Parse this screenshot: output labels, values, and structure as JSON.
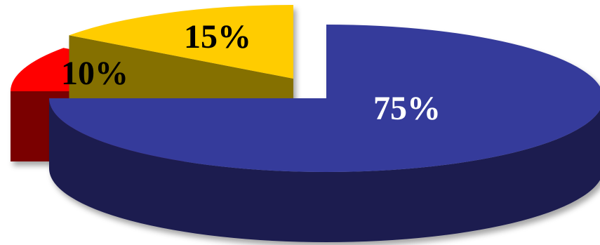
{
  "chart_data": {
    "type": "pie",
    "style": "3d-exploded",
    "legend": "none",
    "slices": [
      {
        "label": "75%",
        "value": 75,
        "color": "#363a9b",
        "side_color": "#1b1c4f",
        "label_color": "#ffffff"
      },
      {
        "label": "10%",
        "value": 10,
        "color": "#ff0000",
        "side_color": "#7a0000",
        "label_color": "#000000"
      },
      {
        "label": "15%",
        "value": 15,
        "color": "#ffcc00",
        "side_color": "#857000",
        "label_color": "#000000"
      }
    ]
  }
}
